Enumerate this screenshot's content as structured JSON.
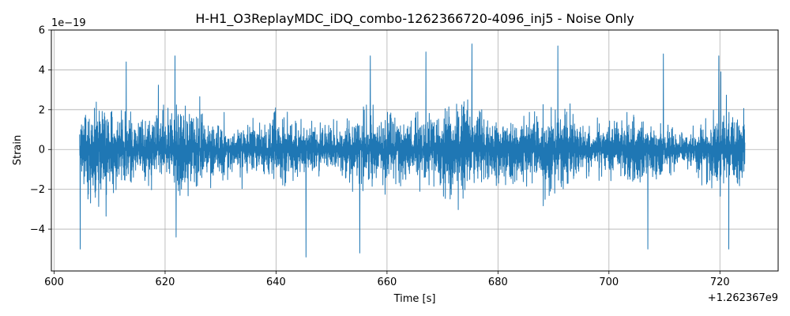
{
  "chart_data": {
    "type": "line",
    "title": "H-H1_O3ReplayMDC_iDQ_combo-1262366720-4096_inj5 - Noise Only",
    "xlabel": "Time [s]",
    "ylabel": "Strain",
    "x_offset_label": "+1.262367e9",
    "y_scale_label": "1e−19",
    "xlim": [
      599.5,
      730.5
    ],
    "ylim": [
      -6.1,
      6.0
    ],
    "x_ticks": [
      600,
      620,
      640,
      660,
      680,
      700,
      720
    ],
    "x_tick_labels": [
      "600",
      "620",
      "640",
      "660",
      "680",
      "700",
      "720"
    ],
    "y_ticks": [
      -4,
      -2,
      0,
      2,
      4,
      6
    ],
    "y_tick_labels": [
      "−4",
      "−2",
      "0",
      "2",
      "4",
      "6"
    ],
    "grid": true,
    "series": [
      {
        "color": "#1f77b4",
        "x_start": 604.6,
        "x_end": 724.5,
        "typical_band": [
          -2.2,
          2.2
        ],
        "notable_peaks": [
          {
            "x": 604.7,
            "y": 3.7
          },
          {
            "x": 604.7,
            "y": -5.0
          },
          {
            "x": 613.0,
            "y": 4.4
          },
          {
            "x": 621.8,
            "y": 4.7
          },
          {
            "x": 622.0,
            "y": -4.4
          },
          {
            "x": 645.4,
            "y": -5.4
          },
          {
            "x": 655.1,
            "y": -5.2
          },
          {
            "x": 657.0,
            "y": 4.7
          },
          {
            "x": 667.0,
            "y": 4.9
          },
          {
            "x": 675.3,
            "y": 5.3
          },
          {
            "x": 690.8,
            "y": 5.2
          },
          {
            "x": 707.0,
            "y": -5.0
          },
          {
            "x": 709.8,
            "y": 4.8
          },
          {
            "x": 719.8,
            "y": 4.7
          },
          {
            "x": 721.6,
            "y": -5.0
          }
        ]
      }
    ]
  }
}
